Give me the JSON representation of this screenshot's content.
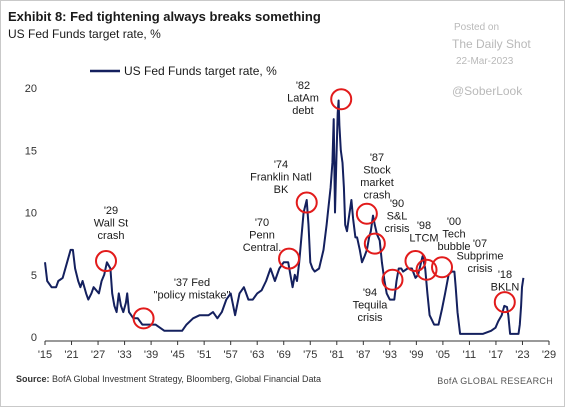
{
  "header": {
    "title": "Exhibit 8: Fed tightening always breaks something",
    "subtitle": "US Fed Funds target rate, %"
  },
  "watermark": {
    "posted": "Posted on",
    "site": "The Daily Shot",
    "date": "22-Mar-2023",
    "handle": "@SoberLook"
  },
  "footer": {
    "source_label": "Source:",
    "source_text": "BofA Global Investment Strategy, Bloomberg, Global Financial Data",
    "brand": "BofA GLOBAL RESEARCH"
  },
  "colors": {
    "line": "#14205e",
    "circle": "#e21b1b",
    "axis": "#333333"
  },
  "chart_data": {
    "type": "line",
    "title": "",
    "xlabel": "",
    "ylabel": "",
    "xlim": [
      1915,
      2029
    ],
    "ylim": [
      0,
      20
    ],
    "grid": false,
    "legend": "top-left",
    "x_ticks": [
      {
        "value": 1915,
        "label": "'15"
      },
      {
        "value": 1921,
        "label": "'21"
      },
      {
        "value": 1927,
        "label": "'27"
      },
      {
        "value": 1933,
        "label": "'33"
      },
      {
        "value": 1939,
        "label": "'39"
      },
      {
        "value": 1945,
        "label": "'45"
      },
      {
        "value": 1951,
        "label": "'51"
      },
      {
        "value": 1957,
        "label": "'57"
      },
      {
        "value": 1963,
        "label": "'63"
      },
      {
        "value": 1969,
        "label": "'69"
      },
      {
        "value": 1975,
        "label": "'75"
      },
      {
        "value": 1981,
        "label": "'81"
      },
      {
        "value": 1987,
        "label": "'87"
      },
      {
        "value": 1993,
        "label": "'93"
      },
      {
        "value": 1999,
        "label": "'99"
      },
      {
        "value": 2005,
        "label": "'05"
      },
      {
        "value": 2011,
        "label": "'11"
      },
      {
        "value": 2017,
        "label": "'17"
      },
      {
        "value": 2023,
        "label": "'23"
      },
      {
        "value": 2029,
        "label": "'29"
      }
    ],
    "y_ticks": [
      {
        "value": 0,
        "label": "0"
      },
      {
        "value": 5,
        "label": "5"
      },
      {
        "value": 10,
        "label": "10"
      },
      {
        "value": 15,
        "label": "15"
      },
      {
        "value": 20,
        "label": "20"
      }
    ],
    "series": [
      {
        "name": "US Fed Funds target rate, %",
        "points": [
          [
            1915,
            6.0
          ],
          [
            1915.5,
            4.5
          ],
          [
            1916.5,
            4.0
          ],
          [
            1917.5,
            4.0
          ],
          [
            1918,
            4.5
          ],
          [
            1919,
            4.75
          ],
          [
            1920,
            6.0
          ],
          [
            1920.8,
            7.0
          ],
          [
            1921.3,
            7.0
          ],
          [
            1921.8,
            5.5
          ],
          [
            1922.5,
            4.5
          ],
          [
            1923,
            4.0
          ],
          [
            1923.5,
            4.5
          ],
          [
            1924.3,
            3.5
          ],
          [
            1924.8,
            3.0
          ],
          [
            1925.5,
            3.5
          ],
          [
            1926,
            4.0
          ],
          [
            1927.2,
            3.5
          ],
          [
            1927.8,
            4.5
          ],
          [
            1928.4,
            5.0
          ],
          [
            1929,
            6.0
          ],
          [
            1929.8,
            5.5
          ],
          [
            1930.2,
            3.5
          ],
          [
            1930.7,
            2.5
          ],
          [
            1931.2,
            2.0
          ],
          [
            1931.7,
            3.5
          ],
          [
            1932.2,
            2.5
          ],
          [
            1932.7,
            2.0
          ],
          [
            1933.3,
            2.75
          ],
          [
            1933.6,
            3.5
          ],
          [
            1934,
            2.0
          ],
          [
            1935,
            1.5
          ],
          [
            1936,
            1.5
          ],
          [
            1937,
            1.0
          ],
          [
            1938.5,
            1.0
          ],
          [
            1940,
            1.0
          ],
          [
            1942,
            0.5
          ],
          [
            1944,
            0.5
          ],
          [
            1946,
            0.5
          ],
          [
            1947,
            1.0
          ],
          [
            1948.5,
            1.5
          ],
          [
            1950,
            1.75
          ],
          [
            1952,
            1.75
          ],
          [
            1953,
            2.0
          ],
          [
            1954,
            1.5
          ],
          [
            1955,
            2.0
          ],
          [
            1956,
            3.0
          ],
          [
            1957,
            3.5
          ],
          [
            1958,
            1.75
          ],
          [
            1959,
            3.5
          ],
          [
            1960,
            4.0
          ],
          [
            1961,
            3.0
          ],
          [
            1962,
            3.0
          ],
          [
            1963,
            3.5
          ],
          [
            1964,
            3.75
          ],
          [
            1965,
            4.5
          ],
          [
            1966,
            5.5
          ],
          [
            1967,
            4.5
          ],
          [
            1968,
            5.5
          ],
          [
            1969,
            6.0
          ],
          [
            1969.5,
            6.0
          ],
          [
            1970,
            6.0
          ],
          [
            1970.5,
            5.0
          ],
          [
            1971,
            4.0
          ],
          [
            1971.5,
            5.0
          ],
          [
            1972,
            4.5
          ],
          [
            1972.5,
            6.0
          ],
          [
            1973,
            8.0
          ],
          [
            1973.5,
            10.0
          ],
          [
            1974.2,
            11.0
          ],
          [
            1974.6,
            9.0
          ],
          [
            1975,
            6.0
          ],
          [
            1975.5,
            5.5
          ],
          [
            1976,
            5.25
          ],
          [
            1977,
            5.5
          ],
          [
            1978,
            7.0
          ],
          [
            1978.7,
            9.0
          ],
          [
            1979,
            10.0
          ],
          [
            1979.6,
            12.0
          ],
          [
            1980,
            14.0
          ],
          [
            1980.3,
            17.5
          ],
          [
            1980.6,
            10.0
          ],
          [
            1980.9,
            14.0
          ],
          [
            1981.2,
            18.0
          ],
          [
            1981.4,
            19.0
          ],
          [
            1981.6,
            17.0
          ],
          [
            1981.9,
            15.0
          ],
          [
            1982.3,
            14.0
          ],
          [
            1982.6,
            12.0
          ],
          [
            1982.9,
            9.0
          ],
          [
            1983.3,
            8.5
          ],
          [
            1983.7,
            9.5
          ],
          [
            1984.3,
            11.0
          ],
          [
            1984.7,
            9.5
          ],
          [
            1985.2,
            8.0
          ],
          [
            1985.6,
            8.0
          ],
          [
            1986.2,
            7.0
          ],
          [
            1986.7,
            6.0
          ],
          [
            1987.3,
            6.5
          ],
          [
            1987.8,
            7.0
          ],
          [
            1988.3,
            8.0
          ],
          [
            1988.7,
            8.5
          ],
          [
            1989.2,
            9.75
          ],
          [
            1989.6,
            9.0
          ],
          [
            1990.1,
            8.25
          ],
          [
            1990.7,
            7.75
          ],
          [
            1991.2,
            6.0
          ],
          [
            1991.8,
            4.5
          ],
          [
            1992.3,
            3.5
          ],
          [
            1993,
            3.0
          ],
          [
            1994,
            3.0
          ],
          [
            1994.5,
            4.5
          ],
          [
            1995,
            5.5
          ],
          [
            1995.6,
            5.5
          ],
          [
            1996,
            5.25
          ],
          [
            1997,
            5.5
          ],
          [
            1998,
            5.5
          ],
          [
            1998.8,
            4.75
          ],
          [
            1999.4,
            5.0
          ],
          [
            2000.4,
            6.5
          ],
          [
            2001,
            5.5
          ],
          [
            2001.5,
            3.5
          ],
          [
            2002,
            1.75
          ],
          [
            2003,
            1.0
          ],
          [
            2004,
            1.0
          ],
          [
            2004.8,
            2.25
          ],
          [
            2005.5,
            3.5
          ],
          [
            2006.3,
            5.0
          ],
          [
            2007,
            5.25
          ],
          [
            2007.6,
            5.25
          ],
          [
            2007.9,
            4.0
          ],
          [
            2008.3,
            2.0
          ],
          [
            2008.9,
            0.25
          ],
          [
            2010,
            0.25
          ],
          [
            2012,
            0.25
          ],
          [
            2014,
            0.25
          ],
          [
            2015.9,
            0.5
          ],
          [
            2016.9,
            0.75
          ],
          [
            2017.5,
            1.25
          ],
          [
            2018.3,
            1.75
          ],
          [
            2018.9,
            2.5
          ],
          [
            2019.5,
            2.4
          ],
          [
            2019.8,
            1.75
          ],
          [
            2020.2,
            0.25
          ],
          [
            2021,
            0.25
          ],
          [
            2022.1,
            0.25
          ],
          [
            2022.4,
            1.0
          ],
          [
            2022.7,
            2.5
          ],
          [
            2022.9,
            4.0
          ],
          [
            2023.2,
            4.75
          ]
        ]
      }
    ],
    "annotations": [
      {
        "lines": [
          "'29",
          "Wall St",
          "crash"
        ],
        "x": 1928.8,
        "y": 6.1
      },
      {
        "lines": [
          "'37 Fed",
          "\"policy mistake\""
        ],
        "x": 1937.3,
        "y": 1.5
      },
      {
        "lines": [
          "'70",
          "Penn",
          "Central."
        ],
        "x": 1970.2,
        "y": 6.3
      },
      {
        "lines": [
          "'74",
          "Franklin Natl",
          "BK"
        ],
        "x": 1974.2,
        "y": 10.8
      },
      {
        "lines": [
          "'82",
          "LatAm",
          "debt"
        ],
        "x": 1982,
        "y": 19.1
      },
      {
        "lines": [
          "'87",
          "Stock",
          "market",
          "crash"
        ],
        "x": 1987.8,
        "y": 9.9
      },
      {
        "lines": [
          "'90",
          "S&L",
          "crisis"
        ],
        "x": 1989.6,
        "y": 7.5
      },
      {
        "lines": [
          "'94",
          "Tequila",
          "crisis"
        ],
        "x": 1993.6,
        "y": 4.6
      },
      {
        "lines": [
          "'98",
          "LTCM"
        ],
        "x": 1998.8,
        "y": 6.1
      },
      {
        "lines": [
          "'00",
          "Tech",
          "bubble"
        ],
        "x": 2001.3,
        "y": 5.4
      },
      {
        "lines": [
          "'07",
          "Subprime",
          "crisis"
        ],
        "x": 2004.8,
        "y": 5.6
      },
      {
        "lines": [
          "'18",
          "BKLN"
        ],
        "x": 2019,
        "y": 2.8
      }
    ]
  }
}
